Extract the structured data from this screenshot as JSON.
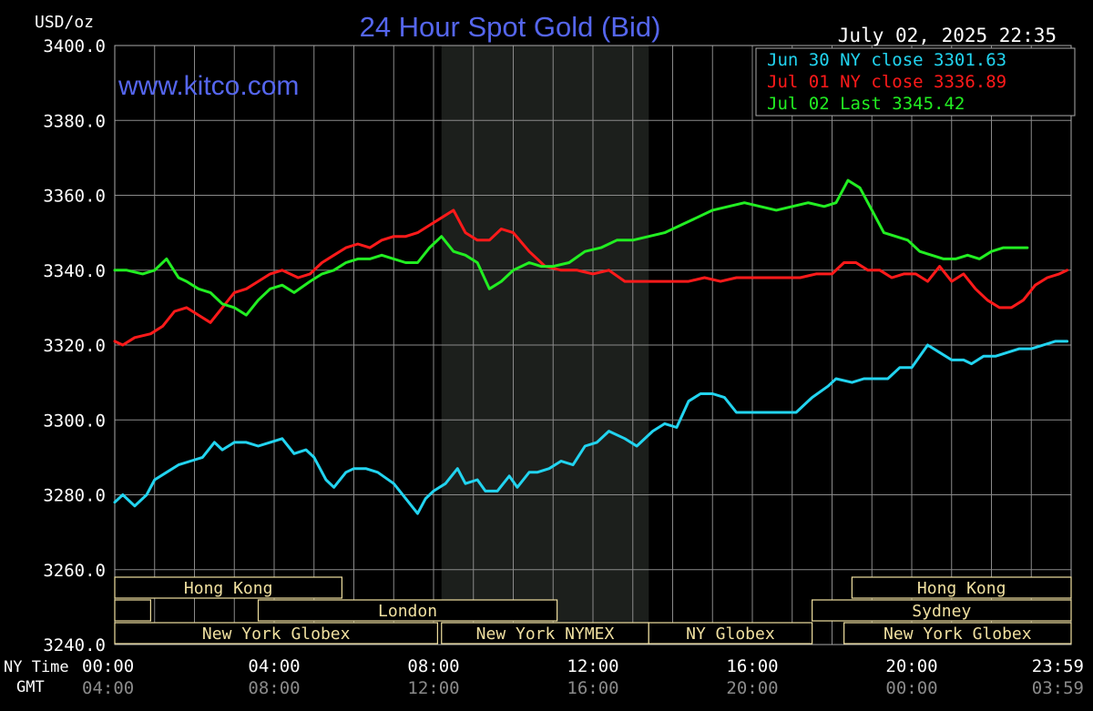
{
  "header": {
    "title": "24 Hour Spot Gold (Bid)",
    "unit_label": "USD/oz",
    "timestamp": "July 02, 2025 22:35",
    "watermark": "www.kitco.com"
  },
  "colors": {
    "background": "#000000",
    "grid": "#8a8a8a",
    "title": "#5566ee",
    "jun30": "#22d4f0",
    "jul01": "#ff1a1a",
    "jul02": "#22ee22",
    "session_label": "#f0e0a0",
    "nymex_shade": "#1c1f1c"
  },
  "legend": {
    "placement": "top-right",
    "entries": [
      {
        "text": "Jun 30 NY close 3301.63",
        "color_key": "jun30"
      },
      {
        "text": "Jul 01 NY close 3336.89",
        "color_key": "jul01"
      },
      {
        "text": "Jul 02 Last 3345.42",
        "color_key": "jul02"
      }
    ]
  },
  "axis_row_labels": {
    "ny_time": "NY Time",
    "gmt": "GMT"
  },
  "sessions": [
    {
      "label": "Hong Kong",
      "start": 0,
      "end": 5.7,
      "row": 0
    },
    {
      "label": "Hong Kong",
      "start": 18.5,
      "end": 24,
      "row": 0
    },
    {
      "label": "",
      "start": 0,
      "end": 0.9,
      "row": 1
    },
    {
      "label": "London",
      "start": 3.6,
      "end": 11.1,
      "row": 1
    },
    {
      "label": "Sydney",
      "start": 17.5,
      "end": 24,
      "row": 1
    },
    {
      "label": "New York Globex",
      "start": 0,
      "end": 8.1,
      "row": 2
    },
    {
      "label": "New York NYMEX",
      "start": 8.2,
      "end": 13.4,
      "row": 2
    },
    {
      "label": "NY Globex",
      "start": 13.4,
      "end": 17.5,
      "row": 2
    },
    {
      "label": "New York Globex",
      "start": 18.3,
      "end": 24,
      "row": 2
    }
  ],
  "chart_data": {
    "type": "line",
    "title": "24 Hour Spot Gold (Bid)",
    "ylabel": "USD/oz",
    "xlabel": "NY Time",
    "ylim": [
      3240,
      3400
    ],
    "xlim": [
      0,
      24
    ],
    "grid": true,
    "yticks": [
      "3400.0",
      "3380.0",
      "3360.0",
      "3340.0",
      "3320.0",
      "3300.0",
      "3280.0",
      "3260.0",
      "3240.0"
    ],
    "xticks_ny": [
      "00:00",
      "04:00",
      "08:00",
      "12:00",
      "16:00",
      "20:00",
      "23:59"
    ],
    "xticks_gmt": [
      "04:00",
      "08:00",
      "12:00",
      "16:00",
      "20:00",
      "00:00",
      "03:59"
    ],
    "shaded_range": [
      8.2,
      13.4
    ],
    "series": [
      {
        "name": "Jun 30 NY close 3301.63",
        "color_key": "jun30",
        "x": [
          0,
          0.2,
          0.5,
          0.8,
          1.0,
          1.3,
          1.6,
          1.9,
          2.2,
          2.5,
          2.7,
          3.0,
          3.3,
          3.6,
          3.9,
          4.2,
          4.5,
          4.8,
          5.0,
          5.3,
          5.5,
          5.8,
          6.0,
          6.3,
          6.6,
          7.0,
          7.3,
          7.6,
          7.8,
          8.0,
          8.3,
          8.6,
          8.8,
          9.1,
          9.3,
          9.6,
          9.9,
          10.1,
          10.4,
          10.6,
          10.9,
          11.2,
          11.5,
          11.8,
          12.1,
          12.4,
          12.8,
          13.1,
          13.5,
          13.8,
          14.1,
          14.4,
          14.7,
          15.0,
          15.3,
          15.6,
          16.0,
          16.4,
          16.8,
          17.1,
          17.5,
          17.9,
          18.1,
          18.5,
          18.8,
          19.1,
          19.4,
          19.7,
          20.0,
          20.4,
          20.7,
          21.0,
          21.3,
          21.5,
          21.8,
          22.1,
          22.4,
          22.7,
          23.0,
          23.3,
          23.6,
          23.9
        ],
        "values": [
          3278,
          3280,
          3277,
          3280,
          3284,
          3286,
          3288,
          3289,
          3290,
          3294,
          3292,
          3294,
          3294,
          3293,
          3294,
          3295,
          3291,
          3292,
          3290,
          3284,
          3282,
          3286,
          3287,
          3287,
          3286,
          3283,
          3279,
          3275,
          3279,
          3281,
          3283,
          3287,
          3283,
          3284,
          3281,
          3281,
          3285,
          3282,
          3286,
          3286,
          3287,
          3289,
          3288,
          3293,
          3294,
          3297,
          3295,
          3293,
          3297,
          3299,
          3298,
          3305,
          3307,
          3307,
          3306,
          3302,
          3302,
          3302,
          3302,
          3302,
          3306,
          3309,
          3311,
          3310,
          3311,
          3311,
          3311,
          3314,
          3314,
          3320,
          3318,
          3316,
          3316,
          3315,
          3317,
          3317,
          3318,
          3319,
          3319,
          3320,
          3321,
          3321
        ]
      },
      {
        "name": "Jul 01 NY close 3336.89",
        "color_key": "jul01",
        "x": [
          0,
          0.2,
          0.5,
          0.9,
          1.2,
          1.5,
          1.8,
          2.1,
          2.4,
          2.7,
          3.0,
          3.3,
          3.6,
          3.9,
          4.2,
          4.6,
          4.9,
          5.2,
          5.5,
          5.8,
          6.1,
          6.4,
          6.7,
          7.0,
          7.3,
          7.6,
          7.9,
          8.2,
          8.5,
          8.8,
          9.1,
          9.4,
          9.7,
          10.0,
          10.4,
          10.8,
          11.2,
          11.6,
          12.0,
          12.4,
          12.8,
          13.2,
          13.6,
          14.0,
          14.4,
          14.8,
          15.2,
          15.6,
          16.0,
          16.4,
          16.8,
          17.2,
          17.6,
          18.0,
          18.3,
          18.6,
          18.9,
          19.2,
          19.5,
          19.8,
          20.1,
          20.4,
          20.7,
          21.0,
          21.3,
          21.6,
          21.9,
          22.2,
          22.5,
          22.8,
          23.1,
          23.4,
          23.7,
          23.9
        ],
        "values": [
          3321,
          3320,
          3322,
          3323,
          3325,
          3329,
          3330,
          3328,
          3326,
          3330,
          3334,
          3335,
          3337,
          3339,
          3340,
          3338,
          3339,
          3342,
          3344,
          3346,
          3347,
          3346,
          3348,
          3349,
          3349,
          3350,
          3352,
          3354,
          3356,
          3350,
          3348,
          3348,
          3351,
          3350,
          3345,
          3341,
          3340,
          3340,
          3339,
          3340,
          3337,
          3337,
          3337,
          3337,
          3337,
          3338,
          3337,
          3338,
          3338,
          3338,
          3338,
          3338,
          3339,
          3339,
          3342,
          3342,
          3340,
          3340,
          3338,
          3339,
          3339,
          3337,
          3341,
          3337,
          3339,
          3335,
          3332,
          3330,
          3330,
          3332,
          3336,
          3338,
          3339,
          3340
        ]
      },
      {
        "name": "Jul 02 Last 3345.42",
        "color_key": "jul02",
        "x": [
          0,
          0.3,
          0.7,
          1.0,
          1.3,
          1.6,
          1.8,
          2.1,
          2.4,
          2.7,
          3.0,
          3.3,
          3.6,
          3.9,
          4.2,
          4.5,
          4.9,
          5.2,
          5.5,
          5.8,
          6.1,
          6.4,
          6.7,
          7.0,
          7.3,
          7.6,
          7.9,
          8.2,
          8.5,
          8.8,
          9.1,
          9.4,
          9.7,
          10.0,
          10.4,
          10.7,
          11.0,
          11.4,
          11.8,
          12.2,
          12.6,
          13.0,
          13.4,
          13.8,
          14.2,
          14.6,
          15.0,
          15.4,
          15.8,
          16.2,
          16.6,
          17.0,
          17.4,
          17.8,
          18.1,
          18.4,
          18.7,
          19.0,
          19.3,
          19.6,
          19.9,
          20.2,
          20.5,
          20.8,
          21.1,
          21.4,
          21.7,
          22.0,
          22.3,
          22.6,
          22.9
        ],
        "values": [
          3340,
          3340,
          3339,
          3340,
          3343,
          3338,
          3337,
          3335,
          3334,
          3331,
          3330,
          3328,
          3332,
          3335,
          3336,
          3334,
          3337,
          3339,
          3340,
          3342,
          3343,
          3343,
          3344,
          3343,
          3342,
          3342,
          3346,
          3349,
          3345,
          3344,
          3342,
          3335,
          3337,
          3340,
          3342,
          3341,
          3341,
          3342,
          3345,
          3346,
          3348,
          3348,
          3349,
          3350,
          3352,
          3354,
          3356,
          3357,
          3358,
          3357,
          3356,
          3357,
          3358,
          3357,
          3358,
          3364,
          3362,
          3356,
          3350,
          3349,
          3348,
          3345,
          3344,
          3343,
          3343,
          3344,
          3343,
          3345,
          3346,
          3346,
          3346
        ]
      }
    ]
  }
}
